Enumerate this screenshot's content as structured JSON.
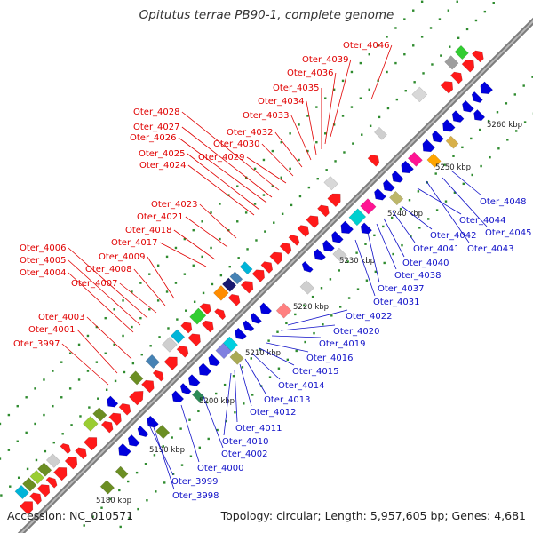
{
  "title": "Opitutus terrae PB90-1, complete genome",
  "footer": {
    "accession": "Accession: NC_010571",
    "summary": "Topology: circular; Length: 5,957,605 bp; Genes: 4,681"
  },
  "colors": {
    "backbone": "#999999",
    "forward_gene": "#ff0000",
    "reverse_gene": "#0000ee",
    "red_label": "#e00000",
    "blue_label": "#1010c8"
  },
  "ruler": [
    "5180 kbp",
    "5190 kbp",
    "5200 kbp",
    "5210 kbp",
    "5220 kbp",
    "5230 kbp",
    "5240 kbp",
    "5250 kbp",
    "5260 kbp"
  ],
  "red_labels": [
    "Oter_3997",
    "Oter_4001",
    "Oter_4003",
    "Oter_4004",
    "Oter_4005",
    "Oter_4006",
    "Oter_4007",
    "Oter_4008",
    "Oter_4009",
    "Oter_4017",
    "Oter_4018",
    "Oter_4021",
    "Oter_4023",
    "Oter_4024",
    "Oter_4025",
    "Oter_4026",
    "Oter_4027",
    "Oter_4028",
    "Oter_4029",
    "Oter_4030",
    "Oter_4032",
    "Oter_4033",
    "Oter_4034",
    "Oter_4035",
    "Oter_4036",
    "Oter_4039",
    "Oter_4046"
  ],
  "blue_labels": [
    "Oter_3998",
    "Oter_3999",
    "Oter_4000",
    "Oter_4002",
    "Oter_4010",
    "Oter_4011",
    "Oter_4012",
    "Oter_4013",
    "Oter_4014",
    "Oter_4015",
    "Oter_4016",
    "Oter_4019",
    "Oter_4020",
    "Oter_4022",
    "Oter_4031",
    "Oter_4037",
    "Oter_4038",
    "Oter_4040",
    "Oter_4041",
    "Oter_4042",
    "Oter_4043",
    "Oter_4044",
    "Oter_4045",
    "Oter_4048"
  ]
}
